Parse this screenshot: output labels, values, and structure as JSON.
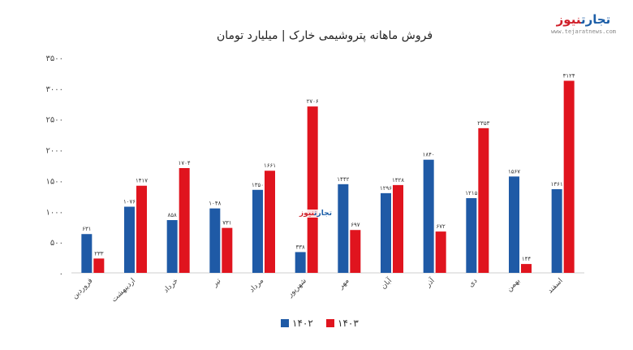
{
  "logo": {
    "main_a": "تجارت",
    "main_b": "نیوز",
    "sub": "www.tejaratnews.com"
  },
  "colors": {
    "series_1402": "#1f5aa6",
    "series_1403": "#e0141e",
    "axis": "#cfcfcf"
  },
  "chart_data": {
    "type": "bar",
    "title": "فروش ماهانه پتروشیمی خارک | میلیارد تومان",
    "xlabel": "",
    "ylabel": "",
    "ylim": [
      0,
      3500
    ],
    "yticks": [
      0,
      500,
      1000,
      1500,
      2000,
      2500,
      3000,
      3500
    ],
    "ytick_labels": [
      "۰",
      "۵۰۰",
      "۱۰۰۰",
      "۱۵۰۰",
      "۲۰۰۰",
      "۲۵۰۰",
      "۳۰۰۰",
      "۳۵۰۰"
    ],
    "grid": false,
    "legend_position": "bottom",
    "categories": [
      "فروردین",
      "اردیبهشت",
      "خرداد",
      "تیر",
      "مرداد",
      "شهریور",
      "مهر",
      "آبان",
      "آذر",
      "دی",
      "بهمن",
      "اسفند"
    ],
    "series": [
      {
        "name": "۱۴۰۲",
        "color": "#1f5aa6",
        "values": [
          631,
          1076,
          858,
          1048,
          1350,
          338,
          1442,
          1296,
          1840,
          1215,
          1567,
          1361
        ],
        "labels": [
          "۶۳۱",
          "۱۰۷۶",
          "۸۵۸",
          "۱۰۴۸",
          "۱۳۵۰",
          "۳۳۸",
          "۱۴۴۲",
          "۱۲۹۶",
          "۱۸۴۰",
          "۱۲۱۵",
          "۱۵۶۷",
          "۱۳۶۱"
        ]
      },
      {
        "name": "۱۴۰۳",
        "color": "#e0141e",
        "values": [
          233,
          1417,
          1704,
          731,
          1661,
          2706,
          697,
          1428,
          672,
          2353,
          144,
          3124
        ],
        "labels": [
          "۲۳۳",
          "۱۴۱۷",
          "۱۷۰۴",
          "۷۳۱",
          "۱۶۶۱",
          "۲۷۰۶",
          "۶۹۷",
          "۱۴۲۸",
          "۶۷۲",
          "۲۳۵۳",
          "۱۴۴",
          "۳۱۲۴"
        ]
      }
    ]
  }
}
